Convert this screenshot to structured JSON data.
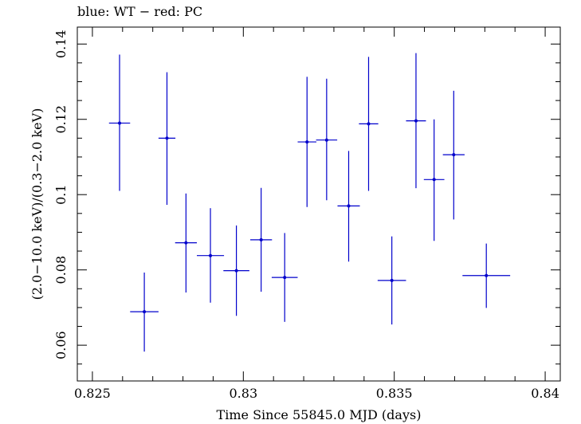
{
  "chart_data": {
    "type": "scatter",
    "title": "blue: WT − red: PC",
    "xlabel": "Time Since 55845.0 MJD (days)",
    "ylabel": "(2.0−10.0 keV)/(0.3−2.0 keV)",
    "xlim": [
      0.8245,
      0.8405
    ],
    "ylim": [
      0.0505,
      0.1445
    ],
    "x_ticks": [
      0.825,
      0.83,
      0.835,
      0.84
    ],
    "x_tick_labels": [
      "0.825",
      "0.83",
      "0.835",
      "0.84"
    ],
    "y_ticks": [
      0.06,
      0.08,
      0.1,
      0.12,
      0.14
    ],
    "y_tick_labels": [
      "0.06",
      "0.08",
      "0.1",
      "0.12",
      "0.14"
    ],
    "x_minor_step": 0.001,
    "y_minor_step": 0.005,
    "series": [
      {
        "name": "WT",
        "color": "#0000cc",
        "points": [
          {
            "x": 0.8259,
            "xerr": 0.00035,
            "y": 0.119,
            "ylo": 0.101,
            "yhi": 0.1372
          },
          {
            "x": 0.82672,
            "xerr": 0.00047,
            "y": 0.0689,
            "ylo": 0.0583,
            "yhi": 0.0793
          },
          {
            "x": 0.82747,
            "xerr": 0.00028,
            "y": 0.115,
            "ylo": 0.0973,
            "yhi": 0.1325
          },
          {
            "x": 0.8281,
            "xerr": 0.00036,
            "y": 0.0872,
            "ylo": 0.074,
            "yhi": 0.1003
          },
          {
            "x": 0.82891,
            "xerr": 0.00045,
            "y": 0.0838,
            "ylo": 0.0713,
            "yhi": 0.0964
          },
          {
            "x": 0.82977,
            "xerr": 0.00043,
            "y": 0.0798,
            "ylo": 0.0678,
            "yhi": 0.0918
          },
          {
            "x": 0.83059,
            "xerr": 0.00036,
            "y": 0.088,
            "ylo": 0.0742,
            "yhi": 0.1018
          },
          {
            "x": 0.83137,
            "xerr": 0.00043,
            "y": 0.078,
            "ylo": 0.0662,
            "yhi": 0.0898
          },
          {
            "x": 0.83211,
            "xerr": 0.00031,
            "y": 0.114,
            "ylo": 0.0967,
            "yhi": 0.1313
          },
          {
            "x": 0.83276,
            "xerr": 0.00035,
            "y": 0.1145,
            "ylo": 0.0985,
            "yhi": 0.1308
          },
          {
            "x": 0.83349,
            "xerr": 0.00037,
            "y": 0.097,
            "ylo": 0.0822,
            "yhi": 0.1116
          },
          {
            "x": 0.83415,
            "xerr": 0.00032,
            "y": 0.1188,
            "ylo": 0.101,
            "yhi": 0.1366
          },
          {
            "x": 0.83492,
            "xerr": 0.00047,
            "y": 0.0772,
            "ylo": 0.0655,
            "yhi": 0.0889
          },
          {
            "x": 0.83572,
            "xerr": 0.00033,
            "y": 0.1196,
            "ylo": 0.1017,
            "yhi": 0.1376
          },
          {
            "x": 0.83632,
            "xerr": 0.00034,
            "y": 0.104,
            "ylo": 0.0877,
            "yhi": 0.12
          },
          {
            "x": 0.83697,
            "xerr": 0.00036,
            "y": 0.1106,
            "ylo": 0.0934,
            "yhi": 0.1276
          },
          {
            "x": 0.83805,
            "xerr": 0.00079,
            "y": 0.0785,
            "ylo": 0.0699,
            "yhi": 0.087
          }
        ]
      }
    ]
  }
}
